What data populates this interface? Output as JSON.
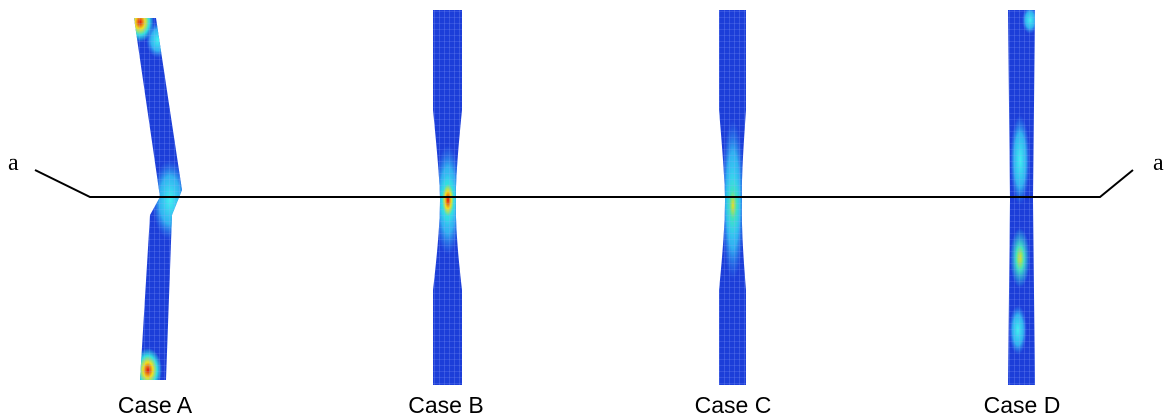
{
  "section_line": {
    "left_label": "a",
    "right_label": "a"
  },
  "cases": [
    {
      "label": "Case A"
    },
    {
      "label": "Case B"
    },
    {
      "label": "Case C"
    },
    {
      "label": "Case D"
    }
  ]
}
